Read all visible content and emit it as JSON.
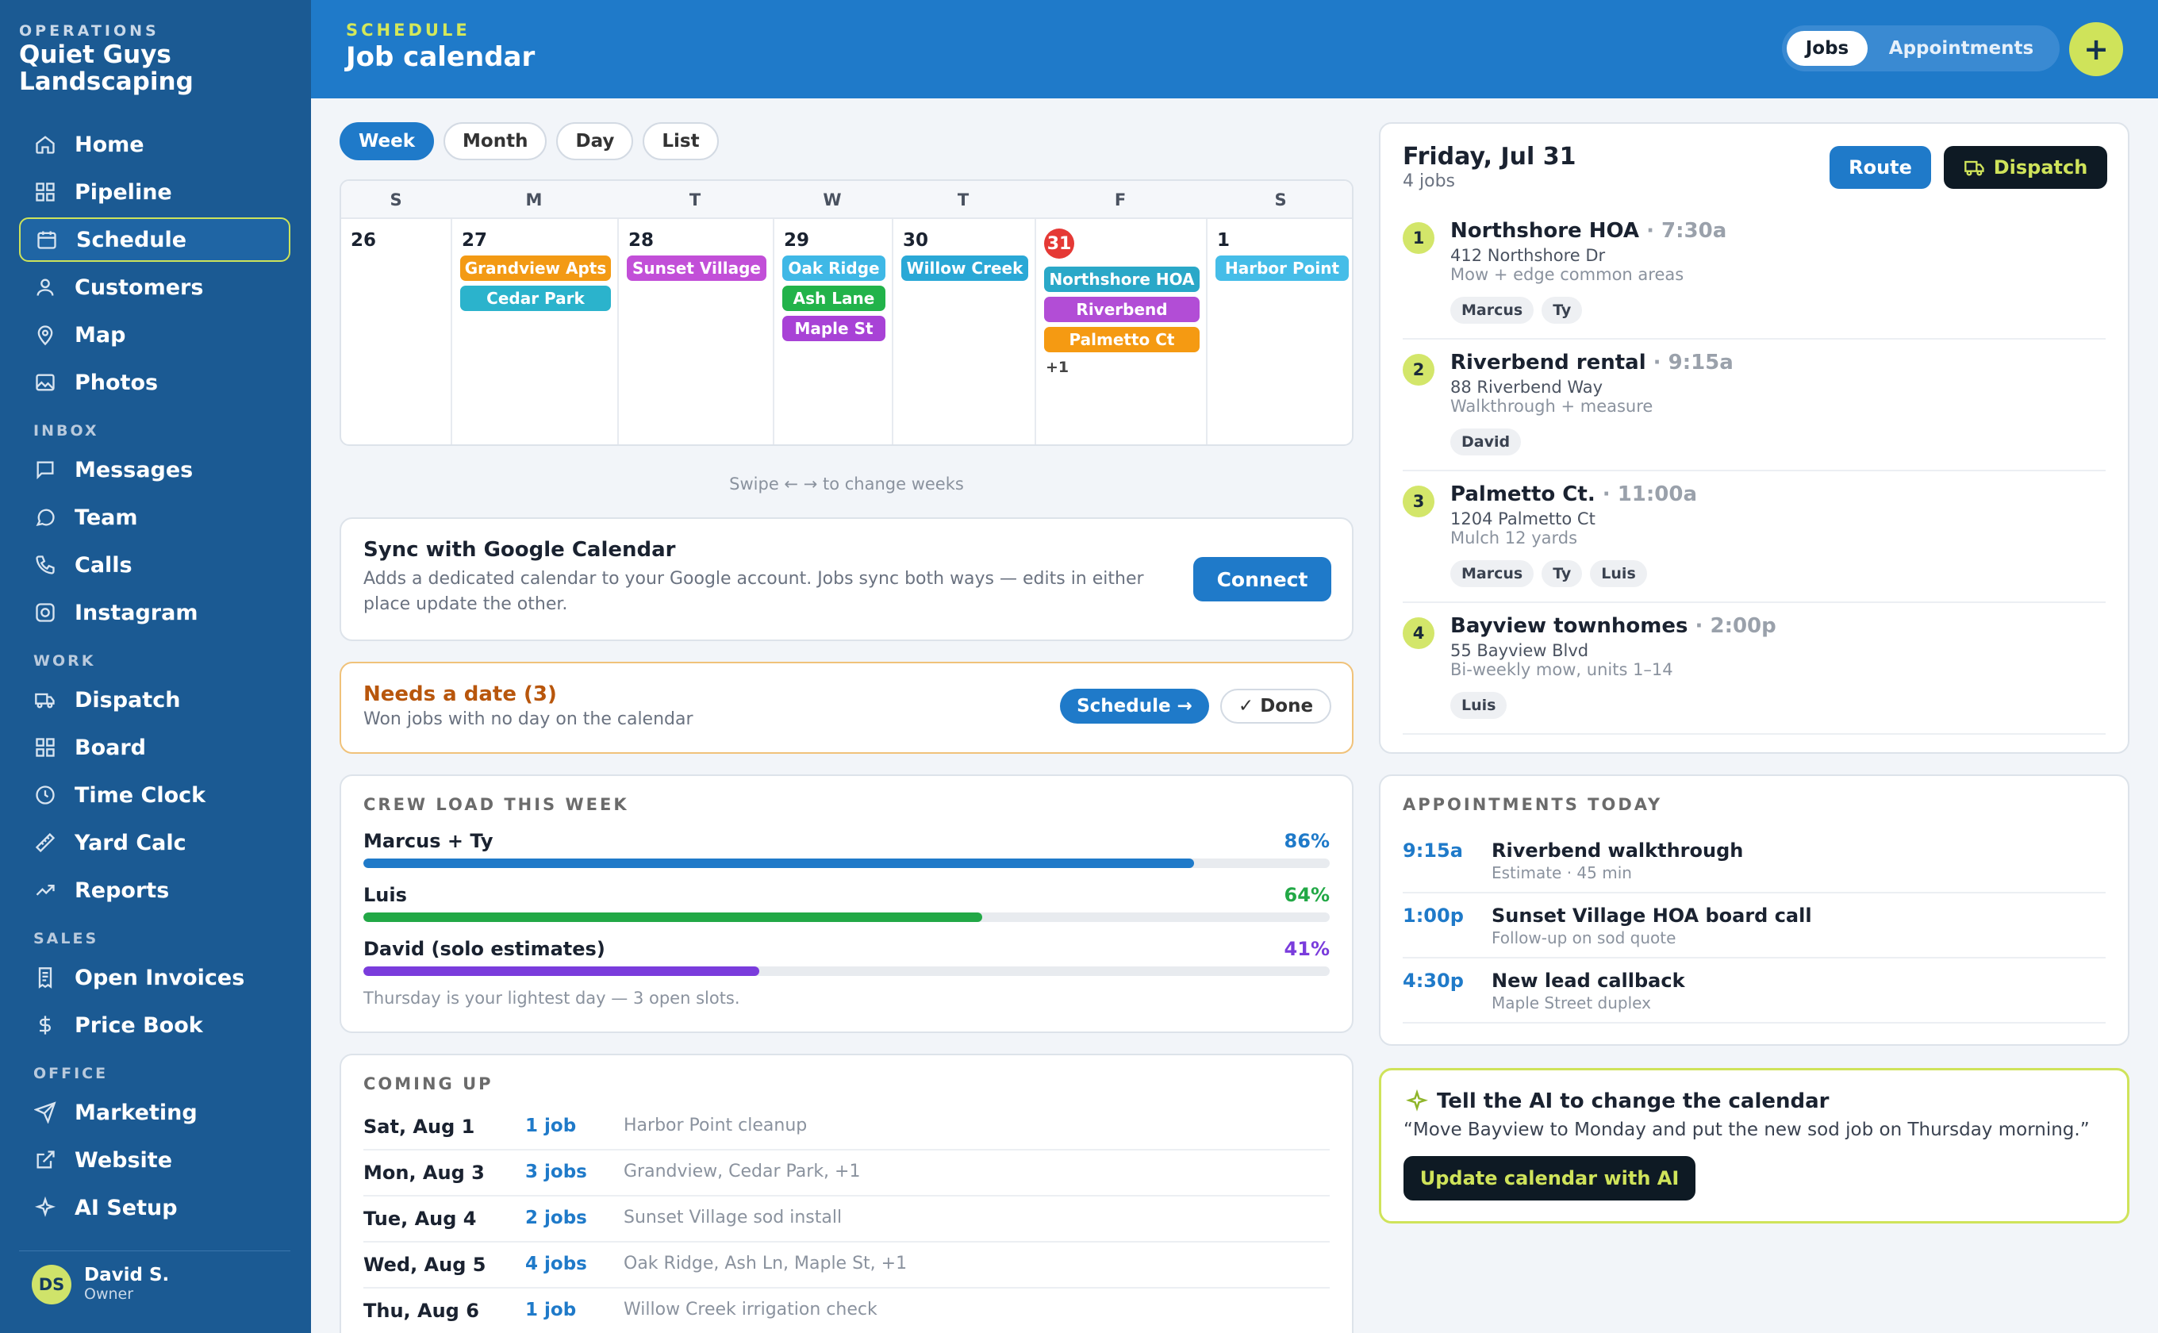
{
  "sidebar": {
    "eyebrow": "OPERATIONS",
    "brand": "Quiet Guys Landscaping",
    "items": [
      {
        "label": "Home",
        "icon": "home-icon"
      },
      {
        "label": "Pipeline",
        "icon": "grid-icon"
      },
      {
        "label": "Schedule",
        "icon": "calendar-icon",
        "active": true
      },
      {
        "label": "Customers",
        "icon": "user-icon"
      },
      {
        "label": "Map",
        "icon": "map-pin-icon"
      },
      {
        "label": "Photos",
        "icon": "image-icon"
      },
      {
        "label": "Messages",
        "icon": "message-square-icon"
      },
      {
        "label": "Team",
        "icon": "chat-bubble-icon"
      },
      {
        "label": "Calls",
        "icon": "phone-icon"
      },
      {
        "label": "Instagram",
        "icon": "instagram-icon"
      },
      {
        "label": "Dispatch",
        "icon": "truck-icon"
      },
      {
        "label": "Board",
        "icon": "board-icon"
      },
      {
        "label": "Time Clock",
        "icon": "clock-icon"
      },
      {
        "label": "Yard Calc",
        "icon": "ruler-icon"
      },
      {
        "label": "Reports",
        "icon": "trend-icon"
      },
      {
        "label": "Open Invoices",
        "icon": "invoice-icon"
      },
      {
        "label": "Price Book",
        "icon": "dollar-icon"
      },
      {
        "label": "Marketing",
        "icon": "send-icon"
      },
      {
        "label": "Website",
        "icon": "external-link-icon"
      },
      {
        "label": "AI Setup",
        "icon": "sparkle-icon"
      }
    ],
    "sections": {
      "inbox": "INBOX",
      "work": "WORK",
      "sales": "SALES",
      "office": "OFFICE"
    },
    "user": {
      "initials": "DS",
      "name": "David S.",
      "role": "Owner"
    }
  },
  "header": {
    "eyebrow": "SCHEDULE",
    "title": "Job calendar",
    "toggle": {
      "selected": "Jobs",
      "other": "Appointments"
    },
    "add_label": "+"
  },
  "views": [
    "Week",
    "Month",
    "Day",
    "List"
  ],
  "calendar": {
    "weekdays": [
      "S",
      "M",
      "T",
      "W",
      "T",
      "F",
      "S"
    ],
    "days": [
      {
        "num": "26",
        "chips": [],
        "more": ""
      },
      {
        "num": "27",
        "chips": [
          {
            "label": "Grandview Apts",
            "color": "#f39a14"
          },
          {
            "label": "Cedar Park",
            "color": "#2bb3cc"
          }
        ],
        "more": ""
      },
      {
        "num": "28",
        "chips": [
          {
            "label": "Sunset Village",
            "color": "#c24fd8"
          }
        ],
        "more": ""
      },
      {
        "num": "29",
        "chips": [
          {
            "label": "Oak Ridge",
            "color": "#3fb8e6"
          },
          {
            "label": "Ash Lane",
            "color": "#22b34a"
          },
          {
            "label": "Maple St",
            "color": "#a842d6"
          }
        ],
        "more": ""
      },
      {
        "num": "30",
        "chips": [
          {
            "label": "Willow Creek",
            "color": "#2aa8d6"
          }
        ],
        "more": ""
      },
      {
        "num": "31",
        "today": true,
        "chips": [
          {
            "label": "Northshore HOA",
            "color": "#2aa8c8"
          },
          {
            "label": "Riverbend",
            "color": "#b24dd6"
          },
          {
            "label": "Palmetto Ct",
            "color": "#f59a12"
          }
        ],
        "more": "+1"
      },
      {
        "num": "1",
        "chips": [
          {
            "label": "Harbor Point",
            "color": "#45bde8"
          }
        ],
        "more": ""
      }
    ],
    "swipe_hint": "Swipe ← → to change weeks"
  },
  "sync": {
    "title": "Sync with Google Calendar",
    "desc": "Adds a dedicated calendar to your Google account. Jobs sync both ways — edits in either place update the other.",
    "button": "Connect"
  },
  "needs": {
    "title": "Needs a date (3)",
    "sub": "Won jobs with no day on the calendar",
    "schedule": "Schedule →",
    "done": "✓ Done"
  },
  "crew_load": {
    "title": "CREW LOAD THIS WEEK",
    "rows": [
      {
        "name": "Marcus + Ty",
        "pct": "86%",
        "value": 0.86,
        "color": "#1f7ac9"
      },
      {
        "name": "Luis",
        "pct": "64%",
        "value": 0.64,
        "color": "#22a846"
      },
      {
        "name": "David (solo estimates)",
        "pct": "41%",
        "value": 0.41,
        "color": "#7a3cdc"
      }
    ],
    "note": "Thursday is your lightest day — 3 open slots."
  },
  "coming_up": {
    "title": "COMING UP",
    "rows": [
      {
        "date": "Sat, Aug 1",
        "count": "1 job",
        "desc": "Harbor Point cleanup"
      },
      {
        "date": "Mon, Aug 3",
        "count": "3 jobs",
        "desc": "Grandview, Cedar Park, +1"
      },
      {
        "date": "Tue, Aug 4",
        "count": "2 jobs",
        "desc": "Sunset Village sod install"
      },
      {
        "date": "Wed, Aug 5",
        "count": "4 jobs",
        "desc": "Oak Ridge, Ash Ln, Maple St, +1"
      },
      {
        "date": "Thu, Aug 6",
        "count": "1 job",
        "desc": "Willow Creek irrigation check"
      }
    ]
  },
  "day_panel": {
    "title": "Friday, Jul 31",
    "sub": "4 jobs",
    "route": "Route",
    "dispatch": "Dispatch",
    "jobs": [
      {
        "n": "1",
        "name": "Northshore HOA",
        "time": "· 7:30a",
        "addr": "412 Northshore Dr",
        "note": "Mow + edge common areas",
        "crew": [
          "Marcus",
          "Ty"
        ]
      },
      {
        "n": "2",
        "name": "Riverbend rental",
        "time": "· 9:15a",
        "addr": "88 Riverbend Way",
        "note": "Walkthrough + measure",
        "crew": [
          "David"
        ]
      },
      {
        "n": "3",
        "name": "Palmetto Ct.",
        "time": "· 11:00a",
        "addr": "1204 Palmetto Ct",
        "note": "Mulch 12 yards",
        "crew": [
          "Marcus",
          "Ty",
          "Luis"
        ]
      },
      {
        "n": "4",
        "name": "Bayview townhomes",
        "time": "· 2:00p",
        "addr": "55 Bayview Blvd",
        "note": "Bi-weekly mow, units 1–14",
        "crew": [
          "Luis"
        ]
      }
    ]
  },
  "appointments": {
    "title": "APPOINTMENTS TODAY",
    "rows": [
      {
        "time": "9:15a",
        "title": "Riverbend walkthrough",
        "sub": "Estimate · 45 min"
      },
      {
        "time": "1:00p",
        "title": "Sunset Village HOA board call",
        "sub": "Follow-up on sod quote"
      },
      {
        "time": "4:30p",
        "title": "New lead callback",
        "sub": "Maple Street duplex"
      }
    ]
  },
  "ai": {
    "title": "Tell the AI to change the calendar",
    "quote": "“Move Bayview to Monday and put the new sod job on Thursday morning.”",
    "button": "Update calendar with AI"
  }
}
